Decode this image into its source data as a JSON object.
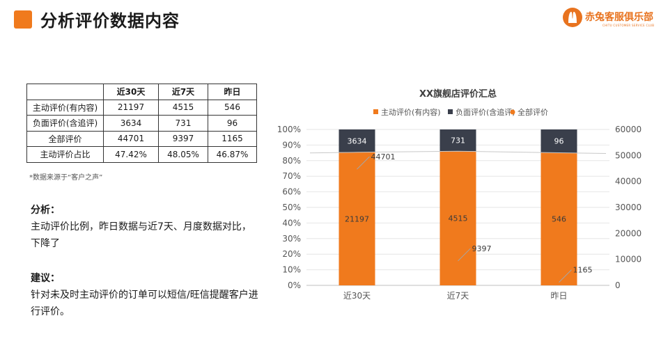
{
  "page": {
    "title": "分析评价数据内容"
  },
  "logo": {
    "name": "赤兔客服俱乐部",
    "subtitle": "CHITU CUSTOMER SERVICE CLUB"
  },
  "table": {
    "headers": [
      "",
      "近30天",
      "近7天",
      "昨日"
    ],
    "rows": [
      [
        "主动评价(有内容)",
        "21197",
        "4515",
        "546"
      ],
      [
        "负面评价(含追评)",
        "3634",
        "731",
        "96"
      ],
      [
        "全部评价",
        "44701",
        "9397",
        "1165"
      ],
      [
        "主动评价占比",
        "47.42%",
        "48.05%",
        "46.87%"
      ]
    ]
  },
  "source_note": "*数据来源于“客户之声”",
  "analysis": {
    "title": "分析：",
    "text": "主动评价比例，昨日数据与近7天、月度数据对比，下降了"
  },
  "suggestion": {
    "title": "建议：",
    "text": "针对未及时主动评价的订单可以短信/旺信提醒客户进行评价。"
  },
  "colors": {
    "accent": "#f07a1d",
    "dark": "#3a3f4b",
    "line": "#c8c8c8"
  },
  "chart_data": {
    "type": "bar",
    "title": "XX旗舰店评价汇总",
    "categories": [
      "近30天",
      "近7天",
      "昨日"
    ],
    "stacked_percent": true,
    "series": [
      {
        "name": "主动评价(有内容)",
        "values": [
          21197,
          4515,
          546
        ],
        "color": "#f07a1d",
        "axis": "left"
      },
      {
        "name": "负面评价(含追评)",
        "values": [
          3634,
          731,
          96
        ],
        "color": "#3a3f4b",
        "axis": "left"
      },
      {
        "name": "全部评价",
        "values": [
          44701,
          9397,
          1165
        ],
        "color": "#f07a1d",
        "axis": "right",
        "type": "line"
      }
    ],
    "y_left_ticks": [
      "0%",
      "10%",
      "20%",
      "30%",
      "40%",
      "50%",
      "60%",
      "70%",
      "80%",
      "90%",
      "100%"
    ],
    "y_right_ticks": [
      "0",
      "10000",
      "20000",
      "30000",
      "40000",
      "50000",
      "60000"
    ],
    "y_right_lim": [
      0,
      60000
    ],
    "legend_position": "top"
  }
}
